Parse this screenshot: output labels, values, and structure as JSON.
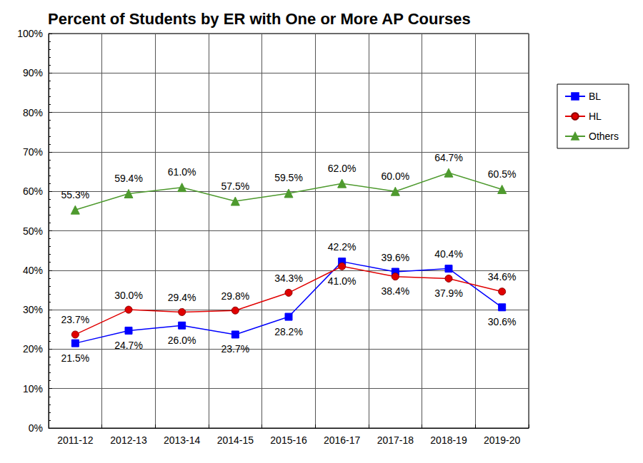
{
  "chart_data": {
    "type": "line",
    "title": "Percent of Students by ER with One or More AP Courses",
    "categories": [
      "2011-12",
      "2012-13",
      "2013-14",
      "2014-15",
      "2015-16",
      "2016-17",
      "2017-18",
      "2018-19",
      "2019-20"
    ],
    "series": [
      {
        "name": "BL",
        "color": "#0000ff",
        "marker": "square",
        "line_style": "solid",
        "values": [
          21.5,
          24.7,
          26.0,
          23.7,
          28.2,
          42.2,
          39.6,
          40.4,
          30.6
        ],
        "value_labels": [
          "21.5%",
          "24.7%",
          "26.0%",
          "23.7%",
          "28.2%",
          "42.2%",
          "39.6%",
          "40.4%",
          "30.6%"
        ]
      },
      {
        "name": "HL",
        "color": "#e00000",
        "marker": "circle",
        "line_style": "solid",
        "values": [
          23.7,
          30.0,
          29.4,
          29.8,
          34.3,
          41.0,
          38.4,
          37.9,
          34.6
        ],
        "value_labels": [
          "23.7%",
          "30.0%",
          "29.4%",
          "29.8%",
          "34.3%",
          "41.0%",
          "38.4%",
          "37.9%",
          "34.6%"
        ]
      },
      {
        "name": "Others",
        "color": "#4e9a2e",
        "marker": "triangle",
        "line_style": "solid",
        "values": [
          55.3,
          59.4,
          61.0,
          57.5,
          59.5,
          62.0,
          60.0,
          64.7,
          60.5
        ],
        "value_labels": [
          "55.3%",
          "59.4%",
          "61.0%",
          "57.5%",
          "59.5%",
          "62.0%",
          "60.0%",
          "64.7%",
          "60.5%"
        ]
      }
    ],
    "ylim": [
      0,
      100
    ],
    "yticks": [
      {
        "value": 0,
        "label": "0%"
      },
      {
        "value": 10,
        "label": "10%"
      },
      {
        "value": 20,
        "label": "20%"
      },
      {
        "value": 30,
        "label": "30%"
      },
      {
        "value": 40,
        "label": "40%"
      },
      {
        "value": 50,
        "label": "50%"
      },
      {
        "value": 60,
        "label": "60%"
      },
      {
        "value": 70,
        "label": "70%"
      },
      {
        "value": 80,
        "label": "80%"
      },
      {
        "value": 90,
        "label": "90%"
      },
      {
        "value": 100,
        "label": "100%"
      }
    ],
    "grid": true,
    "legend": "right",
    "data_labels": true
  }
}
